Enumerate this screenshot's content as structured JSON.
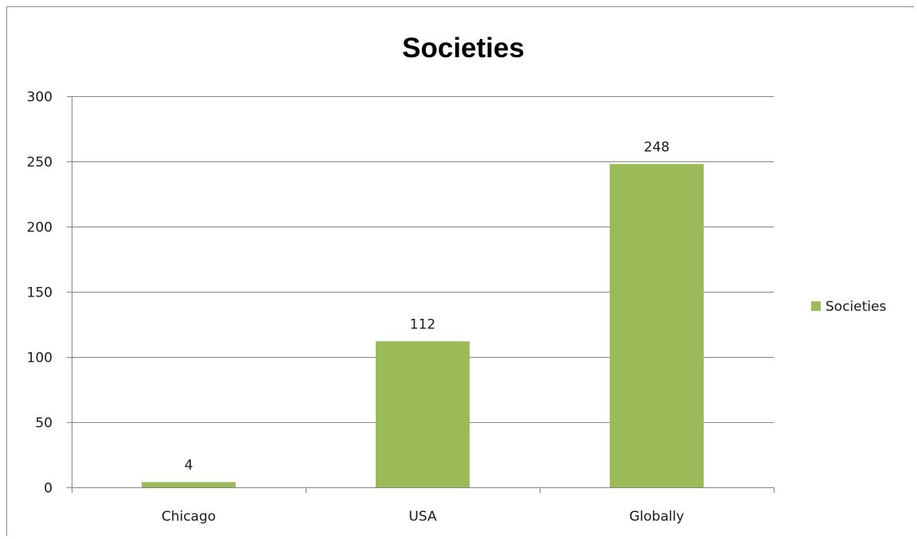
{
  "chart_data": {
    "type": "bar",
    "title": "Societies",
    "categories": [
      "Chicago",
      "USA",
      "Globally"
    ],
    "series": [
      {
        "name": "Societies",
        "values": [
          4,
          112,
          248
        ],
        "color": "#9bbb59"
      }
    ],
    "ylim": [
      0,
      300
    ],
    "yticks": [
      0,
      50,
      100,
      150,
      200,
      250,
      300
    ],
    "grid": true,
    "legend": "right",
    "data_labels": true
  }
}
